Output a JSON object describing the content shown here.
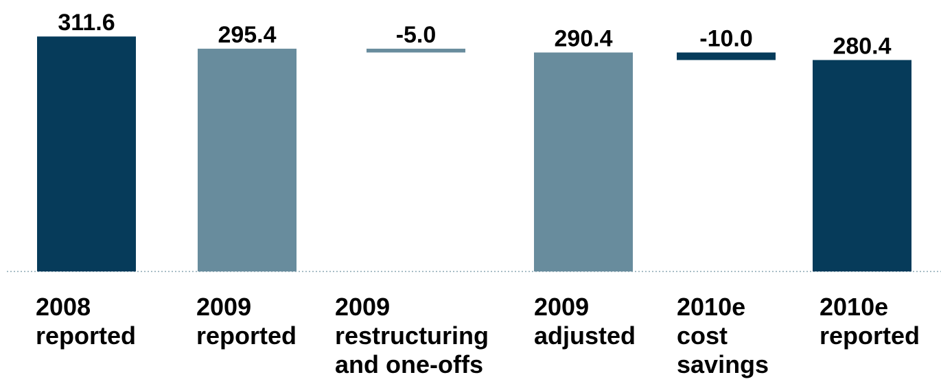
{
  "colors": {
    "dark": "#063b5a",
    "light": "#688c9d",
    "baseline": "#8aa7b4"
  },
  "chart_data": {
    "type": "waterfall",
    "ylim": [
      0,
      330
    ],
    "categories": [
      "2008\nreported",
      "2009\nreported",
      "2009\nrestructuring\nand one-offs",
      "2009\nadjusted",
      "2010e\ncost\nsavings",
      "2010e\nreported"
    ],
    "bars": [
      {
        "kind": "total",
        "start": 0,
        "end": 311.6,
        "label": "311.6",
        "color": "dark"
      },
      {
        "kind": "total",
        "start": 0,
        "end": 295.4,
        "label": "295.4",
        "color": "light"
      },
      {
        "kind": "delta",
        "start": 295.4,
        "end": 290.4,
        "label": "-5.0",
        "color": "light"
      },
      {
        "kind": "total",
        "start": 0,
        "end": 290.4,
        "label": "290.4",
        "color": "light"
      },
      {
        "kind": "delta",
        "start": 290.4,
        "end": 280.4,
        "label": "-10.0",
        "color": "dark"
      },
      {
        "kind": "total",
        "start": 0,
        "end": 280.4,
        "label": "280.4",
        "color": "dark"
      }
    ]
  }
}
